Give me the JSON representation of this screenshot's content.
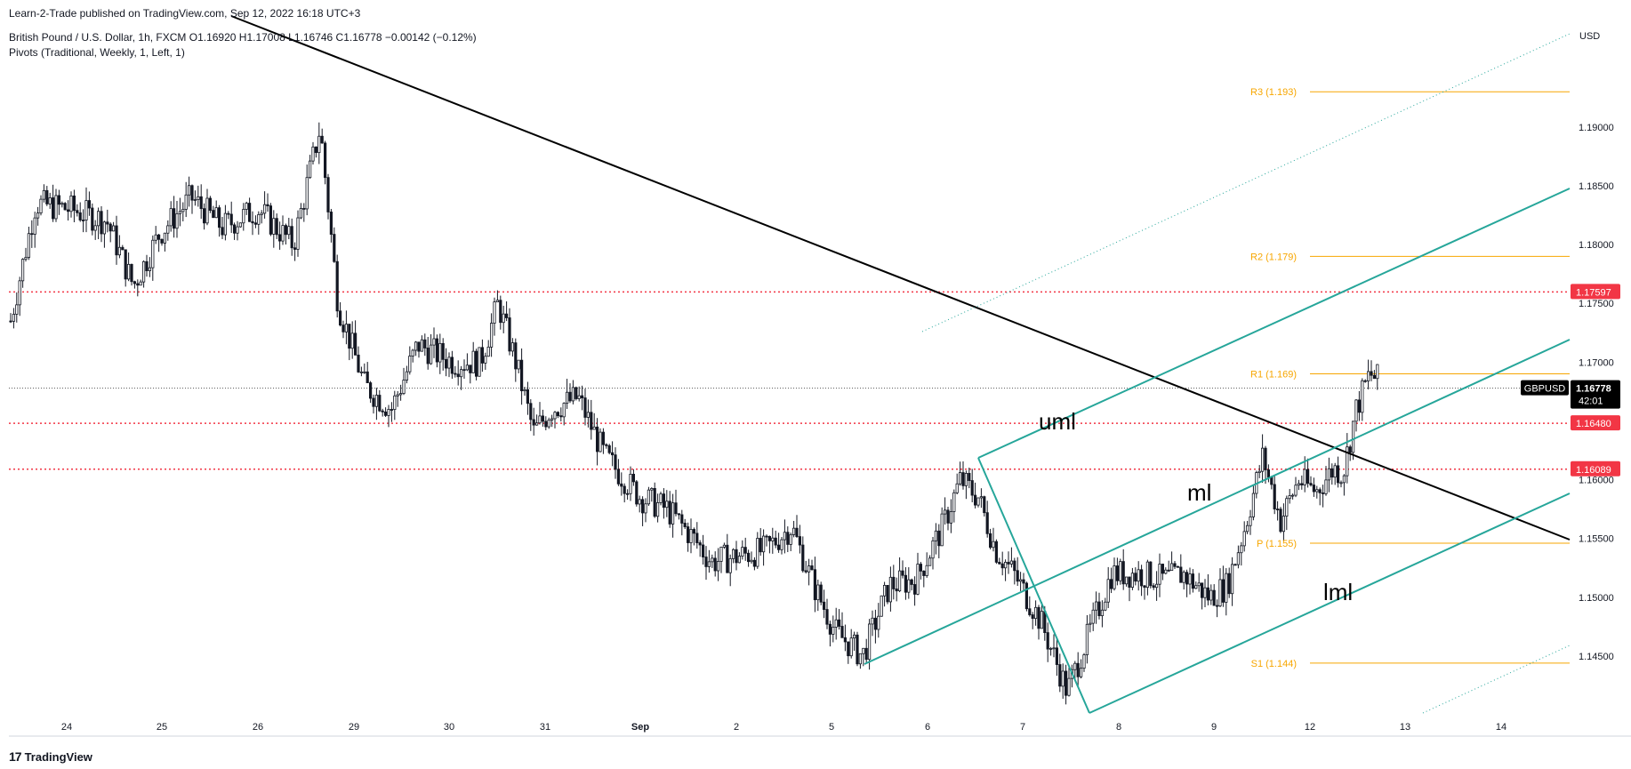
{
  "header": {
    "published": "Learn-2-Trade published on TradingView.com, Sep 12, 2022 16:18 UTC+3",
    "legend": "British Pound / U.S. Dollar, 1h, FXCM  O1.16920  H1.17008  L1.16746  C1.16778  −0.00142 (−0.12%)",
    "pivots": "Pivots (Traditional, Weekly, 1, Left, 1)"
  },
  "footer": {
    "brand": "TradingView",
    "brand_icon": "tradingview-logo-icon"
  },
  "chart_data": {
    "type": "candlestick",
    "symbol": "GBPUSD",
    "timeframe": "1h",
    "currency_label": "USD",
    "ylim": [
      1.14,
      1.199
    ],
    "y_ticks": [
      "1.19000",
      "1.18500",
      "1.18000",
      "1.17500",
      "1.17000",
      "1.16500",
      "1.16000",
      "1.15500",
      "1.15000",
      "1.14500"
    ],
    "x_ticks": [
      "24",
      "25",
      "26",
      "29",
      "30",
      "31",
      "Sep",
      "2",
      "5",
      "6",
      "7",
      "8",
      "9",
      "12",
      "13",
      "14"
    ],
    "last_price": {
      "symbol": "GBPUSD",
      "value": "1.16778",
      "countdown": "42:01",
      "price": 1.16778
    },
    "ohlc": {
      "open": 1.1692,
      "high": 1.17008,
      "low": 1.16746,
      "close": 1.16778,
      "change": -0.00142,
      "change_pct": -0.12
    },
    "horizontal_levels": [
      {
        "label": "1.17597",
        "price": 1.17597,
        "color": "#f23645"
      },
      {
        "label": "1.16480",
        "price": 1.1648,
        "color": "#f23645"
      },
      {
        "label": "1.16089",
        "price": 1.16089,
        "color": "#f23645"
      }
    ],
    "pivots": [
      {
        "label": "R3 (1.193)",
        "price": 1.193
      },
      {
        "label": "R2 (1.179)",
        "price": 1.179
      },
      {
        "label": "R1 (1.169)",
        "price": 1.169
      },
      {
        "label": "P (1.155)",
        "price": 1.1546
      },
      {
        "label": "S1 (1.144)",
        "price": 1.1444
      }
    ],
    "pitchfork_labels": [
      "uml",
      "ml",
      "lml"
    ],
    "colors": {
      "up": "#ffffff",
      "down": "#131722",
      "pitchfork": "#26a69a",
      "pivot": "#f7a600",
      "level": "#f23645",
      "trendline": "#000000"
    },
    "candles": []
  }
}
